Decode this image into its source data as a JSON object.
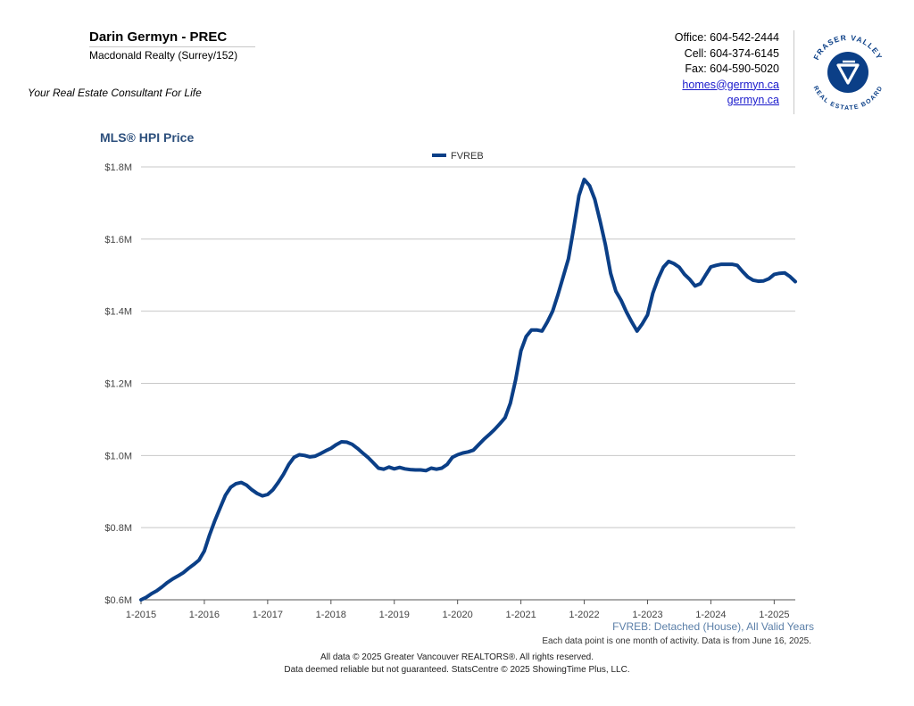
{
  "header": {
    "agent_name": "Darin Germyn - PREC",
    "company": "Macdonald Realty (Surrey/152)",
    "tagline": "Your Real Estate Consultant For Life",
    "office": "Office: 604-542-2444",
    "cell": "Cell: 604-374-6145",
    "fax": "Fax: 604-590-5020",
    "email": "homes@germyn.ca",
    "website": "germyn.ca",
    "logo_top": "FRASER VALLEY",
    "logo_bottom": "REAL ESTATE BOARD"
  },
  "colors": {
    "line": "#0b3f87",
    "title": "#2c4f7c",
    "grid": "#c8c8c8",
    "logo": "#0b3f87"
  },
  "chart_data": {
    "type": "line",
    "title": "MLS® HPI Price",
    "subtitle": "FVREB: Detached (House), All Valid Years",
    "legend": "top-center",
    "grid": true,
    "ylim": [
      600000,
      1800000
    ],
    "yticks": [
      600000,
      800000,
      1000000,
      1200000,
      1400000,
      1600000,
      1800000
    ],
    "ytick_labels": [
      "$0.6M",
      "$0.8M",
      "$1.0M",
      "$1.2M",
      "$1.4M",
      "$1.6M",
      "$1.8M"
    ],
    "xlim": [
      "2015-01",
      "2025-05"
    ],
    "xtick_labels": [
      "1-2015",
      "1-2016",
      "1-2017",
      "1-2018",
      "1-2019",
      "1-2020",
      "1-2021",
      "1-2022",
      "1-2023",
      "1-2024",
      "1-2025"
    ],
    "series": [
      {
        "name": "FVREB",
        "points": [
          [
            "2015-01",
            600000
          ],
          [
            "2015-02",
            607000
          ],
          [
            "2015-03",
            617000
          ],
          [
            "2015-04",
            625000
          ],
          [
            "2015-05",
            636000
          ],
          [
            "2015-06",
            648000
          ],
          [
            "2015-07",
            658000
          ],
          [
            "2015-08",
            666000
          ],
          [
            "2015-09",
            675000
          ],
          [
            "2015-10",
            687000
          ],
          [
            "2015-11",
            698000
          ],
          [
            "2015-12",
            710000
          ],
          [
            "2016-01",
            735000
          ],
          [
            "2016-02",
            780000
          ],
          [
            "2016-03",
            820000
          ],
          [
            "2016-04",
            855000
          ],
          [
            "2016-05",
            890000
          ],
          [
            "2016-06",
            912000
          ],
          [
            "2016-07",
            922000
          ],
          [
            "2016-08",
            925000
          ],
          [
            "2016-09",
            918000
          ],
          [
            "2016-10",
            905000
          ],
          [
            "2016-11",
            895000
          ],
          [
            "2016-12",
            888000
          ],
          [
            "2017-01",
            892000
          ],
          [
            "2017-02",
            905000
          ],
          [
            "2017-03",
            925000
          ],
          [
            "2017-04",
            948000
          ],
          [
            "2017-05",
            975000
          ],
          [
            "2017-06",
            995000
          ],
          [
            "2017-07",
            1002000
          ],
          [
            "2017-08",
            1000000
          ],
          [
            "2017-09",
            996000
          ],
          [
            "2017-10",
            998000
          ],
          [
            "2017-11",
            1005000
          ],
          [
            "2017-12",
            1013000
          ],
          [
            "2018-01",
            1020000
          ],
          [
            "2018-02",
            1030000
          ],
          [
            "2018-03",
            1038000
          ],
          [
            "2018-04",
            1037000
          ],
          [
            "2018-05",
            1031000
          ],
          [
            "2018-06",
            1020000
          ],
          [
            "2018-07",
            1007000
          ],
          [
            "2018-08",
            995000
          ],
          [
            "2018-09",
            980000
          ],
          [
            "2018-10",
            965000
          ],
          [
            "2018-11",
            962000
          ],
          [
            "2018-12",
            968000
          ],
          [
            "2019-01",
            963000
          ],
          [
            "2019-02",
            967000
          ],
          [
            "2019-03",
            963000
          ],
          [
            "2019-04",
            961000
          ],
          [
            "2019-05",
            960000
          ],
          [
            "2019-06",
            960000
          ],
          [
            "2019-07",
            958000
          ],
          [
            "2019-08",
            965000
          ],
          [
            "2019-09",
            962000
          ],
          [
            "2019-10",
            965000
          ],
          [
            "2019-11",
            975000
          ],
          [
            "2019-12",
            995000
          ],
          [
            "2020-01",
            1002000
          ],
          [
            "2020-02",
            1007000
          ],
          [
            "2020-03",
            1010000
          ],
          [
            "2020-04",
            1015000
          ],
          [
            "2020-05",
            1030000
          ],
          [
            "2020-06",
            1045000
          ],
          [
            "2020-07",
            1058000
          ],
          [
            "2020-08",
            1072000
          ],
          [
            "2020-09",
            1088000
          ],
          [
            "2020-10",
            1105000
          ],
          [
            "2020-11",
            1145000
          ],
          [
            "2020-12",
            1210000
          ],
          [
            "2021-01",
            1290000
          ],
          [
            "2021-02",
            1330000
          ],
          [
            "2021-03",
            1348000
          ],
          [
            "2021-04",
            1348000
          ],
          [
            "2021-05",
            1345000
          ],
          [
            "2021-06",
            1370000
          ],
          [
            "2021-07",
            1400000
          ],
          [
            "2021-08",
            1445000
          ],
          [
            "2021-09",
            1495000
          ],
          [
            "2021-10",
            1545000
          ],
          [
            "2021-11",
            1630000
          ],
          [
            "2021-12",
            1720000
          ],
          [
            "2022-01",
            1765000
          ],
          [
            "2022-02",
            1748000
          ],
          [
            "2022-03",
            1710000
          ],
          [
            "2022-04",
            1650000
          ],
          [
            "2022-05",
            1585000
          ],
          [
            "2022-06",
            1505000
          ],
          [
            "2022-07",
            1455000
          ],
          [
            "2022-08",
            1430000
          ],
          [
            "2022-09",
            1398000
          ],
          [
            "2022-10",
            1370000
          ],
          [
            "2022-11",
            1345000
          ],
          [
            "2022-12",
            1365000
          ],
          [
            "2023-01",
            1390000
          ],
          [
            "2023-02",
            1450000
          ],
          [
            "2023-03",
            1490000
          ],
          [
            "2023-04",
            1522000
          ],
          [
            "2023-05",
            1538000
          ],
          [
            "2023-06",
            1532000
          ],
          [
            "2023-07",
            1522000
          ],
          [
            "2023-08",
            1502000
          ],
          [
            "2023-09",
            1488000
          ],
          [
            "2023-10",
            1470000
          ],
          [
            "2023-11",
            1476000
          ],
          [
            "2023-12",
            1500000
          ],
          [
            "2024-01",
            1523000
          ],
          [
            "2024-02",
            1527000
          ],
          [
            "2024-03",
            1530000
          ],
          [
            "2024-04",
            1530000
          ],
          [
            "2024-05",
            1530000
          ],
          [
            "2024-06",
            1527000
          ],
          [
            "2024-07",
            1510000
          ],
          [
            "2024-08",
            1495000
          ],
          [
            "2024-09",
            1486000
          ],
          [
            "2024-10",
            1483000
          ],
          [
            "2024-11",
            1484000
          ],
          [
            "2024-12",
            1490000
          ],
          [
            "2025-01",
            1502000
          ],
          [
            "2025-02",
            1505000
          ],
          [
            "2025-03",
            1506000
          ],
          [
            "2025-04",
            1496000
          ],
          [
            "2025-05",
            1482000
          ]
        ]
      }
    ]
  },
  "notes": {
    "activity": "Each data point is one month of activity. Data is from June 16, 2025.",
    "copyright": "All data © 2025 Greater Vancouver REALTORS®. All rights reserved.",
    "disclaimer": "Data deemed reliable but not guaranteed. StatsCentre © 2025 ShowingTime Plus, LLC."
  }
}
